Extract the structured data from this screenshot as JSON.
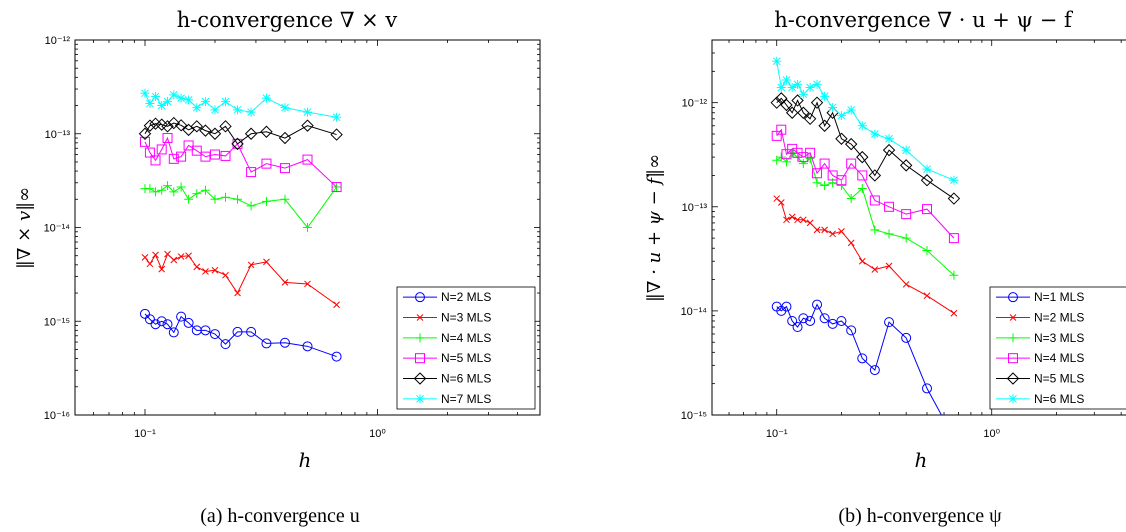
{
  "chart_data": [
    {
      "type": "line",
      "title": "h-convergence ∇ × v",
      "xlabel": "h",
      "ylabel": "‖∇ × v‖∞",
      "caption": "(a) h-convergence u",
      "xscale": "log",
      "yscale": "log",
      "xlim": [
        0.05,
        5
      ],
      "ylim": [
        1e-16,
        1e-12
      ],
      "xticks": [
        0.1,
        1
      ],
      "xtick_labels": [
        "10⁻¹",
        "10⁰"
      ],
      "yticks": [
        1e-16,
        1e-15,
        1e-14,
        1e-13,
        1e-12
      ],
      "ytick_labels": [
        "10⁻¹⁶",
        "10⁻¹⁵",
        "10⁻¹⁴",
        "10⁻¹³",
        "10⁻¹²"
      ],
      "legend_position": "lower-right",
      "series": [
        {
          "name": "N=2 MLS",
          "color": "#0000ff",
          "marker": "circle",
          "x": [
            0.1,
            0.105,
            0.111,
            0.118,
            0.125,
            0.133,
            0.143,
            0.154,
            0.167,
            0.182,
            0.2,
            0.222,
            0.25,
            0.286,
            0.333,
            0.4,
            0.5,
            0.667
          ],
          "y": [
            1.2e-15,
            1.05e-15,
            9.3e-16,
            1e-15,
            9.3e-16,
            7.6e-16,
            1.12e-15,
            9.6e-16,
            8e-16,
            8e-16,
            7.3e-16,
            5.7e-16,
            7.7e-16,
            7.7e-16,
            5.8e-16,
            5.9e-16,
            5.4e-16,
            4.2e-16
          ]
        },
        {
          "name": "N=3 MLS",
          "color": "#ff0000",
          "marker": "x",
          "x": [
            0.1,
            0.105,
            0.111,
            0.118,
            0.125,
            0.133,
            0.143,
            0.154,
            0.167,
            0.182,
            0.2,
            0.222,
            0.25,
            0.286,
            0.333,
            0.4,
            0.5,
            0.667
          ],
          "y": [
            4.8e-15,
            4.1e-15,
            5.1e-15,
            3.6e-15,
            5.2e-15,
            4.5e-15,
            4.9e-15,
            5e-15,
            3.8e-15,
            3.4e-15,
            3.5e-15,
            3.1e-15,
            2e-15,
            4e-15,
            4.3e-15,
            2.6e-15,
            2.5e-15,
            1.5e-15
          ]
        },
        {
          "name": "N=4 MLS",
          "color": "#00ff00",
          "marker": "plus",
          "x": [
            0.1,
            0.105,
            0.111,
            0.118,
            0.125,
            0.133,
            0.143,
            0.154,
            0.167,
            0.182,
            0.2,
            0.222,
            0.25,
            0.286,
            0.333,
            0.4,
            0.5,
            0.667
          ],
          "y": [
            2.6e-14,
            2.6e-14,
            2.4e-14,
            2.5e-14,
            2.8e-14,
            2.4e-14,
            2.7e-14,
            2e-14,
            2.3e-14,
            2.5e-14,
            2e-14,
            2.1e-14,
            2e-14,
            1.7e-14,
            1.9e-14,
            2e-14,
            1e-14,
            2.7e-14
          ]
        },
        {
          "name": "N=5 MLS",
          "color": "#ff00ff",
          "marker": "square",
          "x": [
            0.1,
            0.105,
            0.111,
            0.118,
            0.125,
            0.133,
            0.143,
            0.154,
            0.167,
            0.182,
            0.2,
            0.222,
            0.25,
            0.286,
            0.333,
            0.4,
            0.5,
            0.667
          ],
          "y": [
            8.2e-14,
            6.3e-14,
            5.2e-14,
            6.8e-14,
            9e-14,
            5.4e-14,
            5.7e-14,
            7.5e-14,
            6.6e-14,
            5.7e-14,
            6e-14,
            5.8e-14,
            7.8e-14,
            3.9e-14,
            4.8e-14,
            4.3e-14,
            5.3e-14,
            2.7e-14
          ]
        },
        {
          "name": "N=6 MLS",
          "color": "#000000",
          "marker": "diamond",
          "x": [
            0.1,
            0.105,
            0.111,
            0.118,
            0.125,
            0.133,
            0.143,
            0.154,
            0.167,
            0.182,
            0.2,
            0.222,
            0.25,
            0.286,
            0.333,
            0.4,
            0.5,
            0.667
          ],
          "y": [
            1e-13,
            1.22e-13,
            1.28e-13,
            1.25e-13,
            1.2e-13,
            1.3e-13,
            1.23e-13,
            1.1e-13,
            1.2e-13,
            1.08e-13,
            1e-13,
            1.2e-13,
            7.8e-14,
            1e-13,
            1.05e-13,
            9e-14,
            1.22e-13,
            9.8e-14
          ]
        },
        {
          "name": "N=7 MLS",
          "color": "#00ffff",
          "marker": "star",
          "x": [
            0.1,
            0.105,
            0.111,
            0.118,
            0.125,
            0.133,
            0.143,
            0.154,
            0.167,
            0.182,
            0.2,
            0.222,
            0.25,
            0.286,
            0.333,
            0.4,
            0.5,
            0.667
          ],
          "y": [
            2.7e-13,
            2.1e-13,
            2.5e-13,
            2e-13,
            2.2e-13,
            2.6e-13,
            2.4e-13,
            2.3e-13,
            1.9e-13,
            2.2e-13,
            1.8e-13,
            2.2e-13,
            1.8e-13,
            1.7e-13,
            2.4e-13,
            1.9e-13,
            1.7e-13,
            1.5e-13
          ]
        }
      ]
    },
    {
      "type": "line",
      "title": "h-convergence ∇ · u + ψ − f",
      "xlabel": "h",
      "ylabel": "‖∇ · u + ψ − f‖∞",
      "caption": "(b) h-convergence ψ",
      "xscale": "log",
      "yscale": "log",
      "xlim": [
        0.05,
        5
      ],
      "ylim": [
        1e-15,
        4e-12
      ],
      "xticks": [
        0.1,
        1
      ],
      "xtick_labels": [
        "10⁻¹",
        "10⁰"
      ],
      "yticks": [
        1e-15,
        1e-14,
        1e-13,
        1e-12
      ],
      "ytick_labels": [
        "10⁻¹⁵",
        "10⁻¹⁴",
        "10⁻¹³",
        "10⁻¹²"
      ],
      "legend_position": "lower-right",
      "series": [
        {
          "name": "N=1 MLS",
          "color": "#0000ff",
          "marker": "circle",
          "x": [
            0.1,
            0.105,
            0.111,
            0.118,
            0.125,
            0.133,
            0.143,
            0.154,
            0.167,
            0.182,
            0.2,
            0.222,
            0.25,
            0.286,
            0.333,
            0.4,
            0.5,
            0.6
          ],
          "y": [
            1.1e-14,
            1e-14,
            1.1e-14,
            8e-15,
            7e-15,
            8.5e-15,
            8e-15,
            1.15e-14,
            8.5e-15,
            7.5e-15,
            8e-15,
            6.5e-15,
            3.5e-15,
            2.7e-15,
            7.8e-15,
            5.5e-15,
            1.8e-15,
            9e-16
          ]
        },
        {
          "name": "N=2 MLS",
          "color": "#ff0000",
          "marker": "x",
          "x": [
            0.1,
            0.105,
            0.111,
            0.118,
            0.125,
            0.133,
            0.143,
            0.154,
            0.167,
            0.182,
            0.2,
            0.222,
            0.25,
            0.286,
            0.333,
            0.4,
            0.5,
            0.667
          ],
          "y": [
            1.2e-13,
            1.1e-13,
            7.5e-14,
            8e-14,
            7.5e-14,
            7.5e-14,
            7e-14,
            6e-14,
            6e-14,
            5.5e-14,
            5.8e-14,
            4.5e-14,
            3e-14,
            2.5e-14,
            2.7e-14,
            1.8e-14,
            1.4e-14,
            9.5e-15
          ]
        },
        {
          "name": "N=3 MLS",
          "color": "#00ff00",
          "marker": "plus",
          "x": [
            0.1,
            0.105,
            0.111,
            0.118,
            0.125,
            0.133,
            0.143,
            0.154,
            0.167,
            0.182,
            0.2,
            0.222,
            0.25,
            0.286,
            0.333,
            0.4,
            0.5,
            0.667
          ],
          "y": [
            2.8e-13,
            3e-13,
            2.7e-13,
            3.3e-13,
            3e-13,
            2.6e-13,
            2.9e-13,
            1.7e-13,
            1.6e-13,
            1.7e-13,
            1.6e-13,
            1.2e-13,
            1.5e-13,
            6e-14,
            5.5e-14,
            5e-14,
            3.8e-14,
            2.2e-14
          ]
        },
        {
          "name": "N=4 MLS",
          "color": "#ff00ff",
          "marker": "square",
          "x": [
            0.1,
            0.105,
            0.111,
            0.118,
            0.125,
            0.133,
            0.143,
            0.154,
            0.167,
            0.182,
            0.2,
            0.222,
            0.25,
            0.286,
            0.333,
            0.4,
            0.5,
            0.667
          ],
          "y": [
            4.8e-13,
            5.5e-13,
            3.2e-13,
            3.6e-13,
            3.3e-13,
            3e-13,
            3.3e-13,
            2.1e-13,
            2.6e-13,
            2e-13,
            1.8e-13,
            2.6e-13,
            2e-13,
            1.15e-13,
            1e-13,
            8.5e-14,
            9.5e-14,
            5e-14
          ]
        },
        {
          "name": "N=5 MLS",
          "color": "#000000",
          "marker": "diamond",
          "x": [
            0.1,
            0.105,
            0.111,
            0.118,
            0.125,
            0.133,
            0.143,
            0.154,
            0.167,
            0.182,
            0.2,
            0.222,
            0.25,
            0.286,
            0.333,
            0.4,
            0.5,
            0.667
          ],
          "y": [
            1e-12,
            1.1e-12,
            9.5e-13,
            8e-13,
            1.05e-12,
            8e-13,
            7e-13,
            1e-12,
            6e-13,
            8e-13,
            4.5e-13,
            4e-13,
            3e-13,
            2e-13,
            3.5e-13,
            2.5e-13,
            1.8e-13,
            1.2e-13
          ]
        },
        {
          "name": "N=6 MLS",
          "color": "#00ffff",
          "marker": "star",
          "x": [
            0.1,
            0.105,
            0.111,
            0.118,
            0.125,
            0.133,
            0.143,
            0.154,
            0.167,
            0.182,
            0.2,
            0.222,
            0.25,
            0.286,
            0.333,
            0.4,
            0.5,
            0.667
          ],
          "y": [
            2.5e-12,
            1.4e-12,
            1.65e-12,
            1.4e-12,
            1.5e-12,
            1.2e-12,
            1.4e-12,
            1.5e-12,
            1.15e-12,
            9e-13,
            7.5e-13,
            8.5e-13,
            6e-13,
            5e-13,
            4.5e-13,
            3.5e-13,
            2.3e-13,
            1.8e-13
          ]
        }
      ]
    }
  ]
}
